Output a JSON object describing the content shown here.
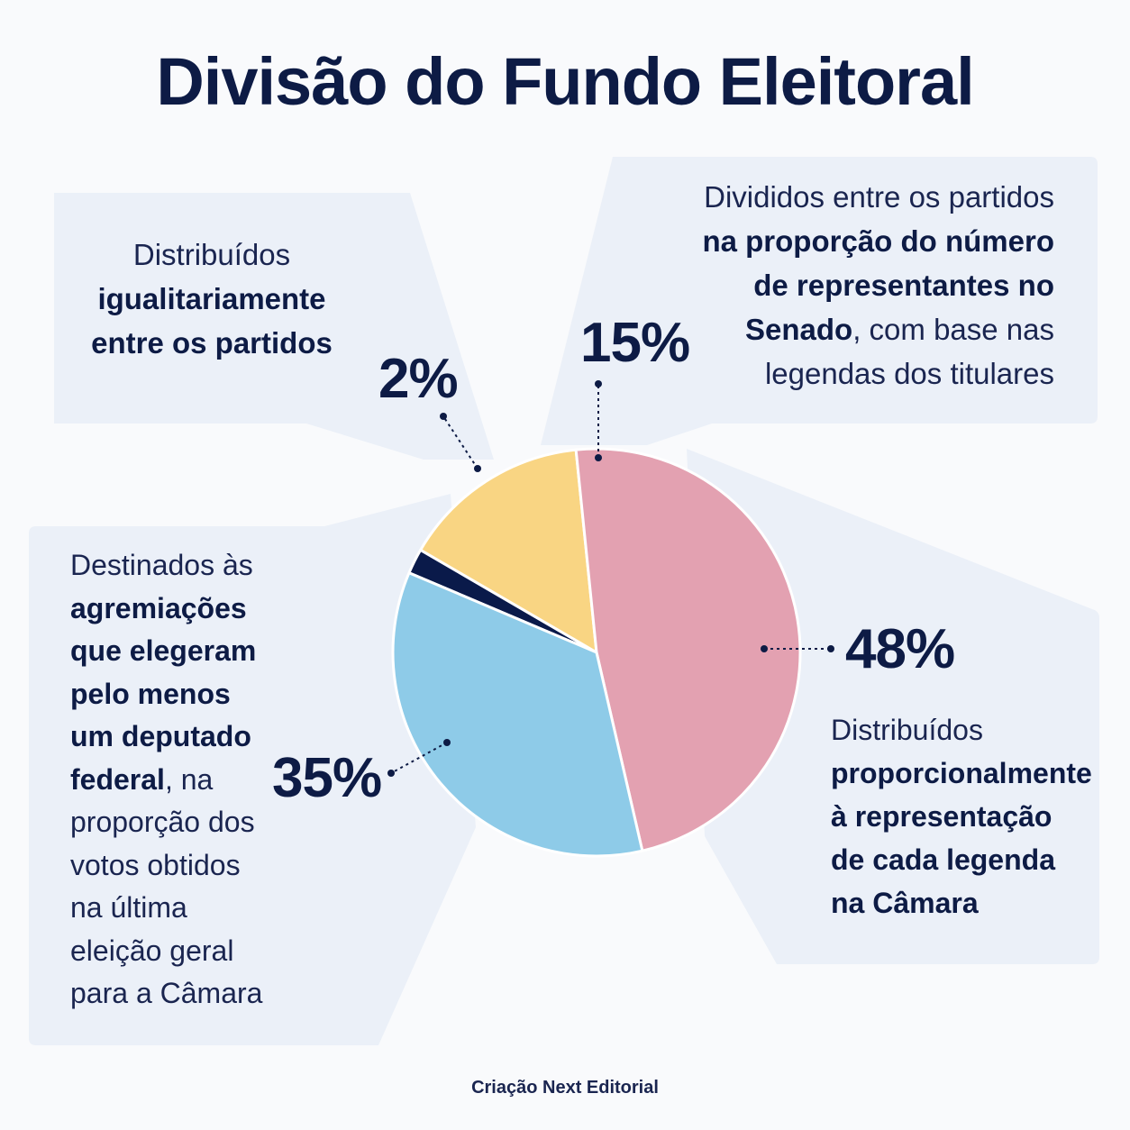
{
  "title": "Divisão do Fundo Eleitoral",
  "credit": "Criação Next Editorial",
  "colors": {
    "navy": "#0a1a4a",
    "yellow": "#f9d583",
    "pink": "#e3a1b1",
    "blue": "#8ecbe8",
    "panel": "#ebf0f8"
  },
  "chart_data": {
    "type": "pie",
    "title": "Divisão do Fundo Eleitoral",
    "slices": [
      {
        "value": 2,
        "label": "2%",
        "color": "#0a1a4a",
        "description": [
          {
            "text": "Distribuídos",
            "bold": false
          },
          {
            "text": "igualitariamente",
            "bold": true
          },
          {
            "text": "entre os partidos",
            "bold": true
          }
        ]
      },
      {
        "value": 15,
        "label": "15%",
        "color": "#f9d583",
        "description": [
          {
            "text": "Divididos entre os partidos",
            "bold": false
          },
          {
            "text": "na proporção do número",
            "bold": true
          },
          {
            "text": "de representantes no",
            "bold": true
          },
          {
            "text": "Senado",
            "bold": true,
            "tail": ", com base nas"
          },
          {
            "text": "legendas dos titulares",
            "bold": false
          }
        ]
      },
      {
        "value": 48,
        "label": "48%",
        "color": "#e3a1b1",
        "description": [
          {
            "text": "Distribuídos",
            "bold": false
          },
          {
            "text": "proporcionalmente",
            "bold": true
          },
          {
            "text": "à representação",
            "bold": true
          },
          {
            "text": "de cada legenda",
            "bold": true
          },
          {
            "text": "na Câmara",
            "bold": true
          }
        ]
      },
      {
        "value": 35,
        "label": "35%",
        "color": "#8ecbe8",
        "description": [
          {
            "text": "Destinados às",
            "bold": false
          },
          {
            "text": "agremiações",
            "bold": true
          },
          {
            "text": "que elegeram",
            "bold": true
          },
          {
            "text": "pelo menos",
            "bold": true
          },
          {
            "text": "um deputado",
            "bold": true
          },
          {
            "text": "federal",
            "bold": true,
            "tail": ", na"
          },
          {
            "text": "proporção dos",
            "bold": false
          },
          {
            "text": "votos obtidos",
            "bold": false
          },
          {
            "text": "na última",
            "bold": false
          },
          {
            "text": "eleição geral",
            "bold": false
          },
          {
            "text": "para a Câmara",
            "bold": false
          }
        ]
      }
    ]
  }
}
